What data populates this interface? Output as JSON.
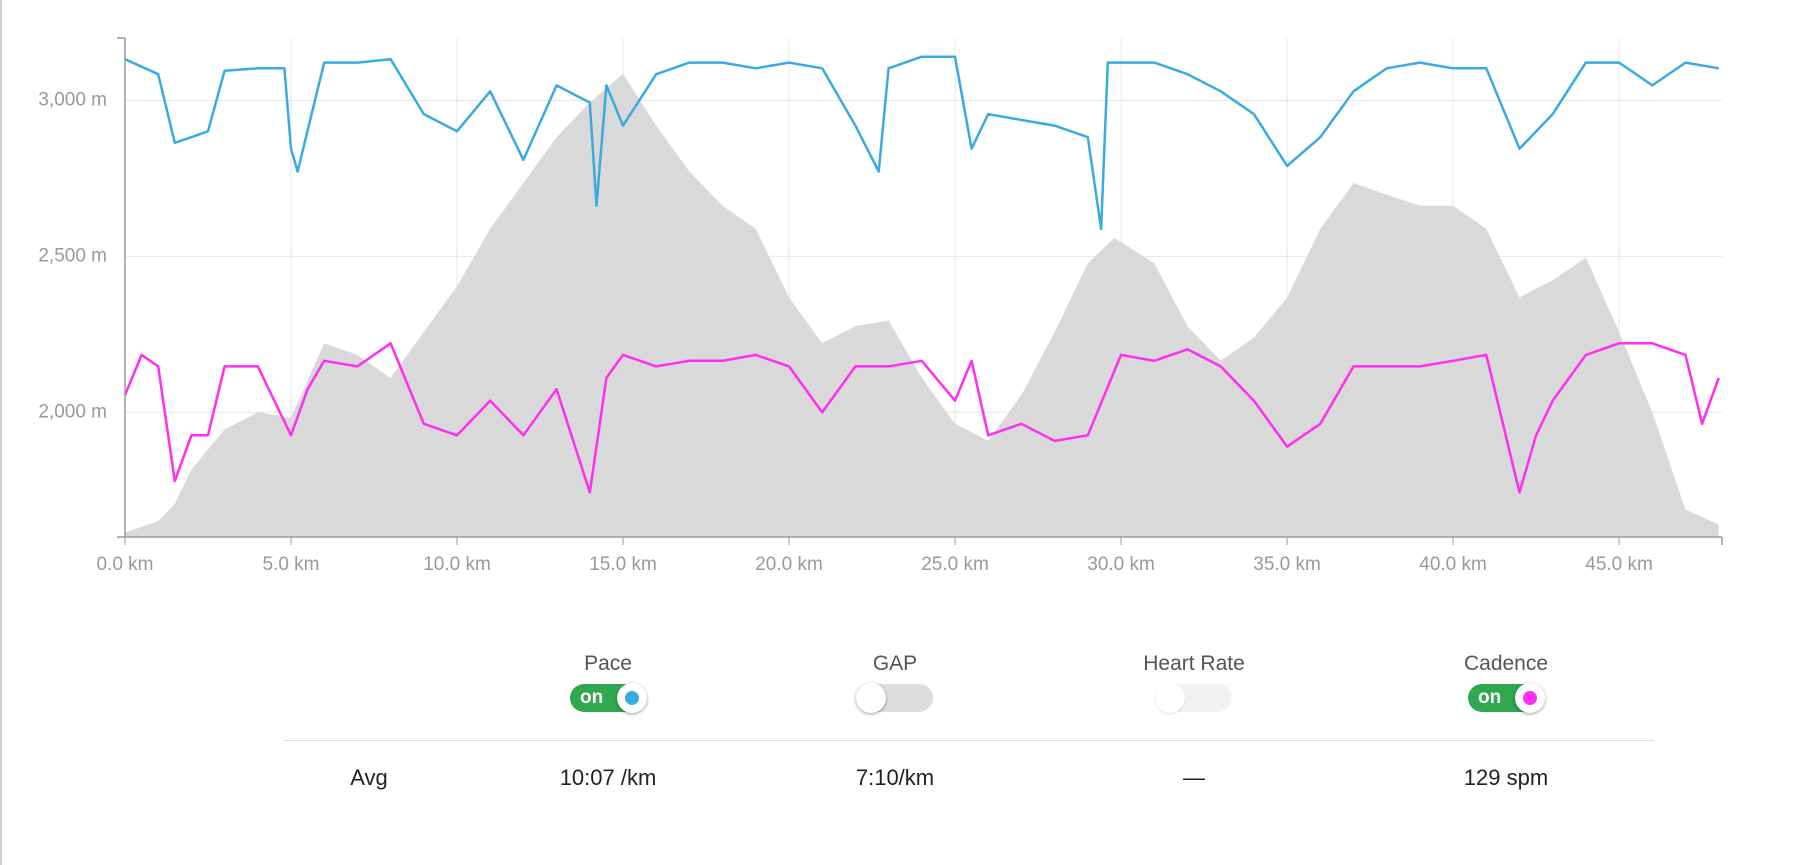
{
  "chart_data": {
    "type": "line",
    "xlim": [
      0,
      48.1
    ],
    "xticks": [
      {
        "value": 0,
        "label": "0.0 km"
      },
      {
        "value": 5,
        "label": "5.0 km"
      },
      {
        "value": 10,
        "label": "10.0 km"
      },
      {
        "value": 15,
        "label": "15.0 km"
      },
      {
        "value": 20,
        "label": "20.0 km"
      },
      {
        "value": 25,
        "label": "25.0 km"
      },
      {
        "value": 30,
        "label": "30.0 km"
      },
      {
        "value": 35,
        "label": "35.0 km"
      },
      {
        "value": 40,
        "label": "40.0 km"
      },
      {
        "value": 45,
        "label": "45.0 km"
      }
    ],
    "ylim": [
      1600,
      3200
    ],
    "yticks": [
      {
        "value": 2000,
        "label": "2,000 m"
      },
      {
        "value": 2500,
        "label": "2,500 m"
      },
      {
        "value": 3000,
        "label": "3,000 m"
      }
    ],
    "grid": true,
    "series": [
      {
        "area": true,
        "color": "#d9d9d9",
        "x": [
          0,
          1,
          1.5,
          2,
          3,
          4,
          5,
          6,
          7,
          8,
          9,
          10,
          11,
          12,
          13,
          14,
          15,
          16,
          17,
          18,
          19,
          20,
          21,
          22,
          23,
          24,
          25,
          26,
          27,
          28,
          29,
          29.8,
          31,
          32,
          33,
          34,
          35,
          36,
          37,
          38,
          39,
          40,
          41,
          42,
          43,
          44,
          45,
          46,
          47,
          48
        ],
        "values": [
          1614,
          1651,
          1706,
          1816,
          1945,
          2000,
          1982,
          2221,
          2184,
          2110,
          2257,
          2404,
          2588,
          2735,
          2882,
          2993,
          3085,
          2919,
          2772,
          2662,
          2588,
          2368,
          2221,
          2276,
          2294,
          2110,
          1963,
          1908,
          2055,
          2257,
          2478,
          2559,
          2478,
          2276,
          2165,
          2239,
          2368,
          2588,
          2735,
          2698,
          2662,
          2662,
          2588,
          2368,
          2423,
          2496,
          2257,
          2000,
          1688,
          1640
        ]
      },
      {
        "name": "Pace",
        "color": "#3aabe0",
        "x": [
          0,
          1,
          1.5,
          2,
          2.5,
          3,
          4,
          4.8,
          5,
          5.2,
          6,
          7,
          8,
          9,
          10,
          11,
          12,
          13,
          14,
          14.2,
          14.5,
          15,
          16,
          17,
          18,
          19,
          20,
          21,
          22,
          22.7,
          23,
          24,
          25,
          25.5,
          26,
          27,
          28,
          29,
          29.4,
          29.6,
          31,
          32,
          33,
          34,
          35,
          36,
          37,
          38,
          39,
          40,
          41,
          42,
          43,
          44,
          45,
          46,
          47,
          48
        ],
        "values": [
          3132,
          3084,
          2864,
          2882,
          2901,
          3095,
          3103,
          3103,
          2845,
          2772,
          3121,
          3121,
          3132,
          2956,
          2901,
          3029,
          2809,
          3048,
          2993,
          2662,
          3048,
          2919,
          3084,
          3121,
          3121,
          3103,
          3121,
          3103,
          2919,
          2772,
          3103,
          3140,
          3140,
          2845,
          2956,
          2937,
          2919,
          2882,
          2588,
          3121,
          3121,
          3084,
          3029,
          2956,
          2790,
          2882,
          3029,
          3103,
          3121,
          3103,
          3103,
          2845,
          2956,
          3121,
          3121,
          3048,
          3121,
          3103
        ]
      },
      {
        "name": "Cadence",
        "color": "#ff2ef0",
        "x": [
          0,
          0.5,
          1,
          1.5,
          2,
          2.5,
          3,
          4,
          5,
          5.5,
          6,
          7,
          8,
          9,
          10,
          11,
          12,
          13,
          14,
          14.5,
          15,
          16,
          17,
          18,
          19,
          20,
          21,
          22,
          23,
          24,
          25,
          25.5,
          26,
          27,
          28,
          29,
          30,
          31,
          32,
          33,
          34,
          35,
          36,
          37,
          38,
          39,
          40,
          41,
          42,
          42.5,
          43,
          44,
          45,
          46,
          47,
          47.5,
          48
        ],
        "values": [
          2055,
          2184,
          2147,
          1779,
          1926,
          1926,
          2147,
          2147,
          1926,
          2074,
          2165,
          2147,
          2221,
          1963,
          1926,
          2037,
          1926,
          2074,
          1743,
          2110,
          2184,
          2147,
          2165,
          2165,
          2184,
          2147,
          2000,
          2147,
          2147,
          2165,
          2037,
          2165,
          1926,
          1963,
          1908,
          1926,
          2184,
          2165,
          2202,
          2147,
          2037,
          1890,
          1963,
          2147,
          2147,
          2147,
          2165,
          2184,
          1743,
          1926,
          2037,
          2184,
          2221,
          2221,
          2184,
          1963,
          2110
        ]
      }
    ]
  },
  "controls": [
    {
      "label": "Pace",
      "on": true,
      "enabled": true,
      "state_label": "on",
      "color": "#3aabe0"
    },
    {
      "label": "GAP",
      "on": false,
      "enabled": true
    },
    {
      "label": "Heart Rate",
      "on": false,
      "enabled": false
    },
    {
      "label": "Cadence",
      "on": true,
      "enabled": true,
      "state_label": "on",
      "color": "#ff2ef0"
    }
  ],
  "summary": {
    "label": "Avg",
    "values": [
      "10:07 /km",
      "7:10/km",
      "—",
      "129 spm"
    ]
  }
}
